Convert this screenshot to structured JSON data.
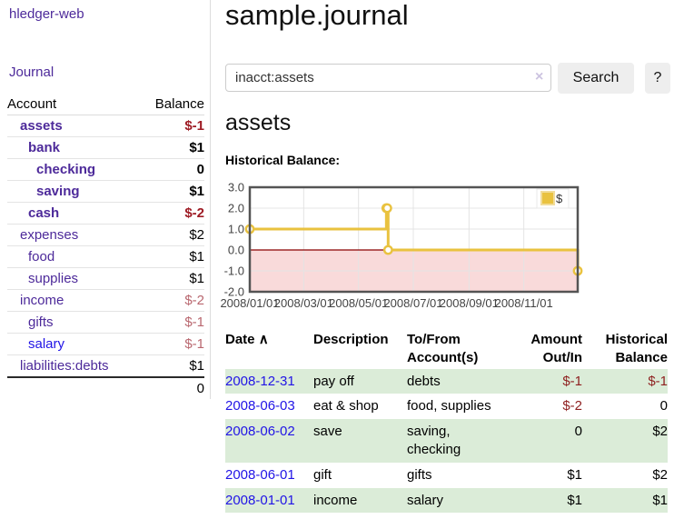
{
  "app": {
    "brand": "hledger-web",
    "journal_link": "Journal"
  },
  "colors": {
    "purple": "#4d2a9a",
    "blue": "#2114e6",
    "negative": "#9e1b24",
    "negative_soft": "#b9676f",
    "table_negative": "#8e1f1f",
    "row_green": "#dbecd8",
    "button_bg": "#eeeeee",
    "border_gray": "#dddddd"
  },
  "sidebar": {
    "header": {
      "account": "Account",
      "balance": "Balance"
    },
    "accounts": [
      {
        "name": "assets",
        "balance": "$-1",
        "level": 1,
        "bold": true,
        "bal_class": "neg"
      },
      {
        "name": "bank",
        "balance": "$1",
        "level": 2,
        "bold": true,
        "bal_class": "pos"
      },
      {
        "name": "checking",
        "balance": "0",
        "level": 3,
        "bold": true,
        "bal_class": "pos"
      },
      {
        "name": "saving",
        "balance": "$1",
        "level": 3,
        "bold": true,
        "bal_class": "pos"
      },
      {
        "name": "cash",
        "balance": "$-2",
        "level": 2,
        "bold": true,
        "bal_class": "neg"
      },
      {
        "name": "expenses",
        "balance": "$2",
        "level": 1,
        "bold": false,
        "bal_class": "pos"
      },
      {
        "name": "food",
        "balance": "$1",
        "level": 2,
        "bold": false,
        "bal_class": "pos"
      },
      {
        "name": "supplies",
        "balance": "$1",
        "level": 2,
        "bold": false,
        "bal_class": "pos"
      },
      {
        "name": "income",
        "balance": "$-2",
        "level": 1,
        "bold": false,
        "bal_class": "neg-soft"
      },
      {
        "name": "gifts",
        "balance": "$-1",
        "level": 2,
        "bold": false,
        "bal_class": "neg-soft"
      },
      {
        "name": "salary",
        "balance": "$-1",
        "level": 2,
        "bold": false,
        "bal_class": "neg-soft",
        "link_class": "blue"
      },
      {
        "name": "liabilities:debts",
        "balance": "$1",
        "level": 1,
        "bold": false,
        "bal_class": "pos"
      }
    ],
    "total": "0"
  },
  "main": {
    "title": "sample.journal",
    "search": {
      "value": "inacct:assets",
      "clear_icon": "×",
      "button_label": "Search",
      "help_label": "?"
    },
    "account_heading": "assets",
    "chart_label": "Historical Balance:"
  },
  "chart_data": {
    "type": "line",
    "step": true,
    "title": "Historical Balance:",
    "series": [
      {
        "name": "$",
        "points": [
          [
            "2008/01/01",
            1
          ],
          [
            "2008/06/01",
            2
          ],
          [
            "2008/06/02",
            2
          ],
          [
            "2008/06/03",
            0
          ],
          [
            "2008/12/31",
            -1
          ]
        ]
      }
    ],
    "xrange": [
      "2008/01/01",
      "2008/12/31"
    ],
    "ylim": [
      -2,
      3
    ],
    "yticks": [
      "3.0",
      "2.0",
      "1.0",
      "0.0",
      "-1.0",
      "-2.0"
    ],
    "xticks": [
      "2008/01/01",
      "2008/03/01",
      "2008/05/01",
      "2008/07/01",
      "2008/09/01",
      "2008/11/01"
    ],
    "legend": {
      "label": "$",
      "position": "top-right"
    },
    "grid": true,
    "colors": {
      "line": "#e9c23f",
      "marker_fill": "#ffffff",
      "negative_region": "#f9dada",
      "zero_line": "#8b0000",
      "border": "#545454",
      "gridline": "#e4e4e4",
      "tick_text": "#444444",
      "legend_square_border": "#f1dc99"
    }
  },
  "register": {
    "headers": {
      "date": "Date",
      "sort_icon": "∧",
      "description": "Description",
      "tofrom": "To/From\nAccount(s)",
      "amount": "Amount\nOut/In",
      "balance": "Historical\nBalance"
    },
    "rows": [
      {
        "date": "2008-12-31",
        "description": "pay off",
        "accounts": "debts",
        "amount": "$-1",
        "amount_neg": true,
        "balance": "$-1",
        "balance_neg": true,
        "shaded": true
      },
      {
        "date": "2008-06-03",
        "description": "eat & shop",
        "accounts": "food, supplies",
        "amount": "$-2",
        "amount_neg": true,
        "balance": "0",
        "balance_neg": false,
        "shaded": false
      },
      {
        "date": "2008-06-02",
        "description": "save",
        "accounts": "saving,\nchecking",
        "amount": "0",
        "amount_neg": false,
        "balance": "$2",
        "balance_neg": false,
        "shaded": true
      },
      {
        "date": "2008-06-01",
        "description": "gift",
        "accounts": "gifts",
        "amount": "$1",
        "amount_neg": false,
        "balance": "$2",
        "balance_neg": false,
        "shaded": false
      },
      {
        "date": "2008-01-01",
        "description": "income",
        "accounts": "salary",
        "amount": "$1",
        "amount_neg": false,
        "balance": "$1",
        "balance_neg": false,
        "shaded": true
      }
    ]
  }
}
